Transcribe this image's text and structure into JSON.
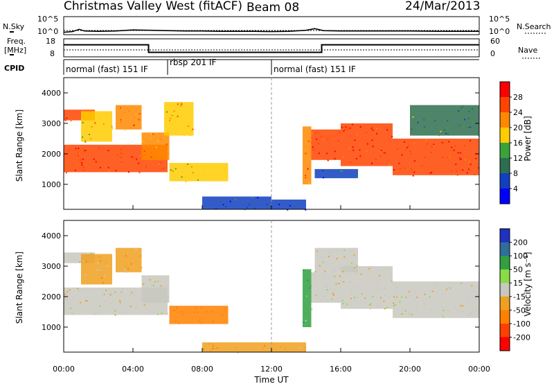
{
  "header": {
    "title": "Christmas Valley West (fitACF)",
    "beam": "Beam 08",
    "date": "24/Mar/2013"
  },
  "side_labels": {
    "nsky": "N.Sky",
    "freq_line1": "Freq.",
    "freq_line2": "[MHz]",
    "cpid": "CPID",
    "nsearch": "N.Search",
    "nave": "Nave"
  },
  "strip_axes": {
    "noise_left_ticks": [
      "10^5",
      "10^0"
    ],
    "noise_right_ticks": [
      "10^5",
      "10^0"
    ],
    "freq_left_ticks": [
      "18",
      "8"
    ],
    "nave_right_ticks": [
      "60",
      "0"
    ]
  },
  "cpid_segments": [
    {
      "label": "normal (fast) 151 IF",
      "start_hour": 0
    },
    {
      "label": "rbsp 201 IF",
      "start_hour": 6
    },
    {
      "label": "normal (fast) 151 IF",
      "start_hour": 12
    }
  ],
  "panels": {
    "power": {
      "ylabel": "Slant Range [km]",
      "colorbar_label": "Power [dB]",
      "colorbar_ticks": [
        "28",
        "24",
        "20",
        "16",
        "12",
        "8",
        "4"
      ]
    },
    "velocity": {
      "ylabel": "Slant Range [km]",
      "colorbar_label": "Velocity [m s⁻¹]",
      "colorbar_ticks": [
        "200",
        "100",
        "50",
        "15",
        "-15",
        "-50",
        "-100",
        "-200"
      ]
    }
  },
  "colors": {
    "power_scale": [
      "#ff0000",
      "#ff4400",
      "#ff8800",
      "#ffcc00",
      "#3aa33a",
      "#2e6e50",
      "#1040c0",
      "#0000ff"
    ],
    "velocity_scale": [
      "#2030c0",
      "#2f6d9a",
      "#30a040",
      "#88dd44",
      "#c8c8c0",
      "#f0a020",
      "#ff8000",
      "#ff4000",
      "#ff0000"
    ]
  },
  "chart_data": {
    "type": "heatmap",
    "xlabel": "Time UT",
    "x_ticks": [
      "00:00",
      "04:00",
      "08:00",
      "12:00",
      "16:00",
      "20:00",
      "00:00"
    ],
    "x_range_hours": [
      0,
      24
    ],
    "y_ticks": [
      "1000",
      "2000",
      "3000",
      "4000"
    ],
    "y_range_km": [
      180,
      4500
    ],
    "noise_series": {
      "name": "N.Sky",
      "x": [
        0,
        0.5,
        0.9,
        1.2,
        2,
        3,
        4,
        5,
        6,
        7,
        8,
        9,
        10,
        11,
        12,
        13,
        14,
        14.5,
        15,
        16,
        18,
        20,
        22,
        24
      ],
      "values_log10": [
        0.5,
        0.7,
        1.4,
        0.9,
        0.8,
        0.9,
        1.2,
        1.1,
        1.0,
        0.9,
        0.9,
        0.8,
        0.8,
        0.8,
        0.7,
        0.8,
        1.1,
        1.6,
        1.0,
        0.9,
        0.9,
        0.9,
        0.8,
        0.8
      ]
    },
    "freq_series": {
      "name": "Freq.",
      "x": [
        0,
        4.9,
        4.9,
        14.9,
        14.9,
        24
      ],
      "values_mhz": [
        14.7,
        14.7,
        10.5,
        10.5,
        14.7,
        14.7
      ]
    },
    "power_patches": [
      {
        "t0": 0.0,
        "t1": 2.9,
        "r0": 1400,
        "r1": 2300,
        "value_db": 26
      },
      {
        "t0": 0.0,
        "t1": 1.8,
        "r0": 3100,
        "r1": 3450,
        "value_db": 24
      },
      {
        "t0": 1.0,
        "t1": 2.8,
        "r0": 2400,
        "r1": 3400,
        "value_db": 18
      },
      {
        "t0": 2.9,
        "t1": 6.0,
        "r0": 1400,
        "r1": 2300,
        "value_db": 26
      },
      {
        "t0": 3.0,
        "t1": 4.5,
        "r0": 2800,
        "r1": 3600,
        "value_db": 22
      },
      {
        "t0": 4.5,
        "t1": 6.1,
        "r0": 1800,
        "r1": 2700,
        "value_db": 20
      },
      {
        "t0": 5.8,
        "t1": 7.5,
        "r0": 2600,
        "r1": 3700,
        "value_db": 18
      },
      {
        "t0": 6.1,
        "t1": 9.5,
        "r0": 1100,
        "r1": 1700,
        "value_db": 16
      },
      {
        "t0": 8.0,
        "t1": 12.0,
        "r0": 180,
        "r1": 600,
        "value_db": 6
      },
      {
        "t0": 12.0,
        "t1": 14.0,
        "r0": 180,
        "r1": 500,
        "value_db": 5
      },
      {
        "t0": 13.8,
        "t1": 14.3,
        "r0": 1000,
        "r1": 2900,
        "value_db": 22
      },
      {
        "t0": 14.3,
        "t1": 16.0,
        "r0": 1800,
        "r1": 2800,
        "value_db": 26
      },
      {
        "t0": 16.0,
        "t1": 19.0,
        "r0": 1600,
        "r1": 3000,
        "value_db": 26
      },
      {
        "t0": 19.0,
        "t1": 24.0,
        "r0": 1300,
        "r1": 2500,
        "value_db": 26
      },
      {
        "t0": 14.5,
        "t1": 17.0,
        "r0": 1200,
        "r1": 1500,
        "value_db": 6
      },
      {
        "t0": 20.0,
        "t1": 24.0,
        "r0": 2600,
        "r1": 3600,
        "value_db": 10
      }
    ],
    "velocity_patches": [
      {
        "t0": 0.0,
        "t1": 2.9,
        "r0": 1400,
        "r1": 2300,
        "value_ms": 0
      },
      {
        "t0": 0.0,
        "t1": 1.8,
        "r0": 3100,
        "r1": 3450,
        "value_ms": 0
      },
      {
        "t0": 1.0,
        "t1": 2.8,
        "r0": 2400,
        "r1": 3400,
        "value_ms": -30
      },
      {
        "t0": 2.9,
        "t1": 6.0,
        "r0": 1400,
        "r1": 2300,
        "value_ms": 0
      },
      {
        "t0": 3.0,
        "t1": 4.5,
        "r0": 2800,
        "r1": 3600,
        "value_ms": -40
      },
      {
        "t0": 4.5,
        "t1": 6.1,
        "r0": 1800,
        "r1": 2700,
        "value_ms": 0
      },
      {
        "t0": 6.1,
        "t1": 9.5,
        "r0": 1100,
        "r1": 1700,
        "value_ms": -60
      },
      {
        "t0": 8.0,
        "t1": 14.0,
        "r0": 180,
        "r1": 500,
        "value_ms": -40
      },
      {
        "t0": 13.8,
        "t1": 14.3,
        "r0": 1000,
        "r1": 2900,
        "value_ms": 40
      },
      {
        "t0": 14.3,
        "t1": 16.0,
        "r0": 1800,
        "r1": 2800,
        "value_ms": 0
      },
      {
        "t0": 16.0,
        "t1": 19.0,
        "r0": 1600,
        "r1": 3000,
        "value_ms": 0
      },
      {
        "t0": 19.0,
        "t1": 24.0,
        "r0": 1300,
        "r1": 2500,
        "value_ms": 0
      },
      {
        "t0": 14.5,
        "t1": 17.0,
        "r0": 2800,
        "r1": 3600,
        "value_ms": 0
      }
    ]
  }
}
